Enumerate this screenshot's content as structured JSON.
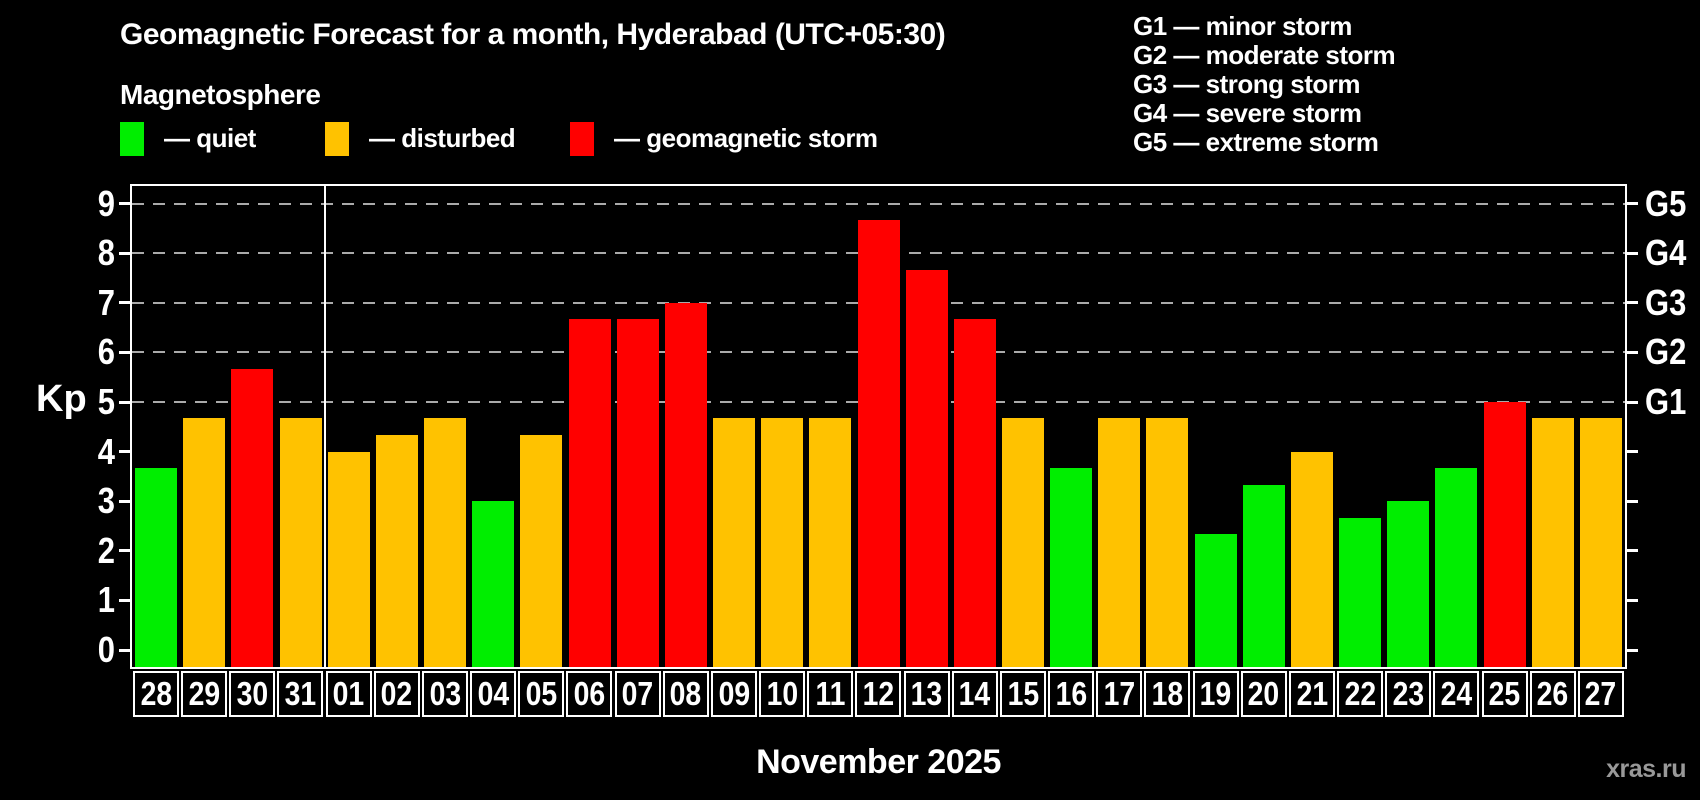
{
  "header": {
    "title": "Geomagnetic Forecast for a month, Hyderabad (UTC+05:30)",
    "subtitle": "Magnetosphere",
    "watermark": "xras.ru"
  },
  "legend": {
    "items": [
      {
        "key": "quiet",
        "label": "— quiet",
        "color": "#00ee00"
      },
      {
        "key": "disturbed",
        "label": "— disturbed",
        "color": "#ffc200"
      },
      {
        "key": "storm",
        "label": "— geomagnetic storm",
        "color": "#ff0000"
      }
    ]
  },
  "g_legend": {
    "items": [
      "G1 — minor storm",
      "G2 — moderate storm",
      "G3 — strong storm",
      "G4 — severe storm",
      "G5 — extreme storm"
    ]
  },
  "chart_data": {
    "type": "bar",
    "title": "Geomagnetic Forecast for a month, Hyderabad (UTC+05:30)",
    "ylabel": "Kp",
    "xlabel": "November 2025",
    "ylim": [
      0,
      9
    ],
    "y_ticks": [
      0,
      1,
      2,
      3,
      4,
      5,
      6,
      7,
      8,
      9
    ],
    "right_axis": {
      "labels": [
        "G1",
        "G2",
        "G3",
        "G4",
        "G5"
      ],
      "kp_values": [
        5,
        6,
        7,
        8,
        9
      ]
    },
    "gridlines": {
      "kp_values": [
        5,
        6,
        7,
        8,
        9
      ],
      "style": "dashed"
    },
    "month_separator_after_index": 3,
    "categories": [
      "28",
      "29",
      "30",
      "31",
      "01",
      "02",
      "03",
      "04",
      "05",
      "06",
      "07",
      "08",
      "09",
      "10",
      "11",
      "12",
      "13",
      "14",
      "15",
      "16",
      "17",
      "18",
      "19",
      "20",
      "21",
      "22",
      "23",
      "24",
      "25",
      "26",
      "27"
    ],
    "values": [
      3.67,
      4.67,
      5.67,
      4.67,
      4.0,
      4.33,
      4.67,
      3.0,
      4.33,
      6.67,
      6.67,
      7.0,
      4.67,
      4.67,
      4.67,
      8.67,
      7.67,
      6.67,
      4.67,
      3.67,
      4.67,
      4.67,
      2.33,
      3.33,
      4.0,
      2.67,
      3.0,
      3.67,
      5.0,
      4.67,
      4.67
    ],
    "levels": [
      "quiet",
      "disturbed",
      "storm",
      "disturbed",
      "disturbed",
      "disturbed",
      "disturbed",
      "quiet",
      "disturbed",
      "storm",
      "storm",
      "storm",
      "disturbed",
      "disturbed",
      "disturbed",
      "storm",
      "storm",
      "storm",
      "disturbed",
      "quiet",
      "disturbed",
      "disturbed",
      "quiet",
      "quiet",
      "disturbed",
      "quiet",
      "quiet",
      "quiet",
      "storm",
      "disturbed",
      "disturbed"
    ]
  },
  "colors": {
    "quiet": "#00ee00",
    "disturbed": "#ffc200",
    "storm": "#ff0000",
    "background": "#000000",
    "axis": "#ffffff",
    "grid": "#aaaaaa",
    "text": "#ffffff",
    "watermark": "#999999"
  }
}
